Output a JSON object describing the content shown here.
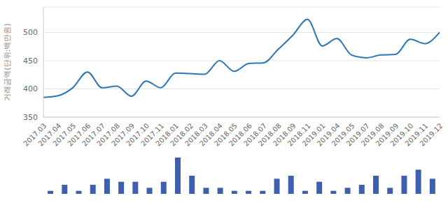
{
  "chart_data": [
    {
      "type": "line",
      "y_label": "거래금액(단위:백만원)",
      "categories": [
        "2017.03",
        "2017.04",
        "2017.05",
        "2017.06",
        "2017.07",
        "2017.08",
        "2017.09",
        "2017.10",
        "2017.11",
        "2018.01",
        "2018.02",
        "2018.03",
        "2018.04",
        "2018.05",
        "2018.06",
        "2018.07",
        "2018.08",
        "2018.09",
        "2018.11",
        "2019.01",
        "2019.04",
        "2019.05",
        "2019.07",
        "2019.08",
        "2019.09",
        "2019.10",
        "2019.11",
        "2019.12"
      ],
      "values": [
        385,
        388,
        402,
        430,
        402,
        405,
        387,
        414,
        402,
        428,
        427,
        426,
        450,
        431,
        445,
        446,
        470,
        495,
        523,
        476,
        489,
        460,
        455,
        460,
        461,
        488,
        480,
        500
      ],
      "color": "#2b76b9",
      "ylim": [
        350,
        545
      ],
      "yticks": [
        350,
        400,
        450,
        500
      ],
      "grid": true
    },
    {
      "type": "bar",
      "categories": [
        "2017.03",
        "2017.04",
        "2017.05",
        "2017.06",
        "2017.07",
        "2017.08",
        "2017.09",
        "2017.10",
        "2017.11",
        "2018.01",
        "2018.02",
        "2018.03",
        "2018.04",
        "2018.05",
        "2018.06",
        "2018.07",
        "2018.08",
        "2018.09",
        "2018.11",
        "2019.01",
        "2019.04",
        "2019.05",
        "2019.07",
        "2019.08",
        "2019.09",
        "2019.10",
        "2019.11",
        "2019.12"
      ],
      "values": [
        1,
        3,
        1,
        3,
        5,
        4,
        4,
        2,
        4,
        12,
        6,
        2,
        2,
        1,
        1,
        1,
        5,
        6,
        1,
        4,
        1,
        2,
        3,
        6,
        2,
        6,
        8,
        5
      ],
      "color": "#3f5fae",
      "ylim": [
        0,
        12
      ],
      "tick_labels": false
    }
  ]
}
